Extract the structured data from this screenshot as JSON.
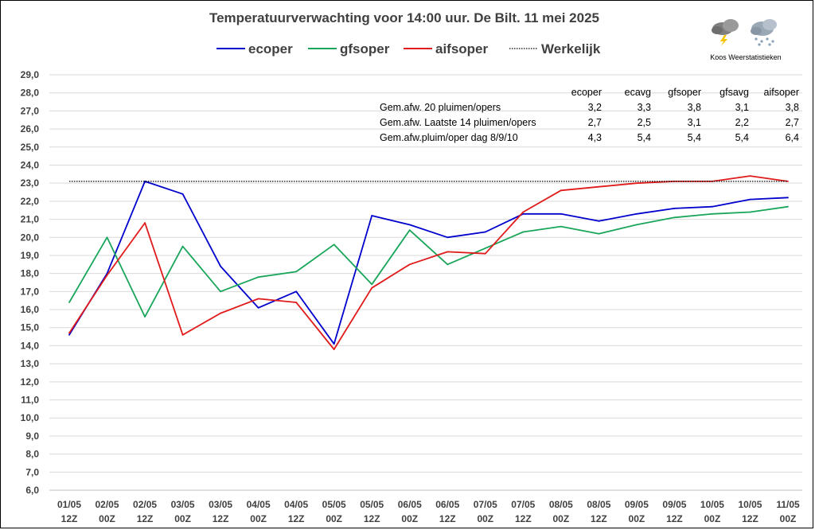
{
  "chart_data": {
    "type": "line",
    "title": "Temperatuurverwachting voor 14:00 uur. De Bilt. 11 mei 2025",
    "categories": [
      [
        "01/05",
        "12Z"
      ],
      [
        "02/05",
        "00Z"
      ],
      [
        "02/05",
        "12Z"
      ],
      [
        "03/05",
        "00Z"
      ],
      [
        "03/05",
        "12Z"
      ],
      [
        "04/05",
        "00Z"
      ],
      [
        "04/05",
        "12Z"
      ],
      [
        "05/05",
        "00Z"
      ],
      [
        "05/05",
        "12Z"
      ],
      [
        "06/05",
        "00Z"
      ],
      [
        "06/05",
        "12Z"
      ],
      [
        "07/05",
        "00Z"
      ],
      [
        "07/05",
        "12Z"
      ],
      [
        "08/05",
        "00Z"
      ],
      [
        "08/05",
        "12Z"
      ],
      [
        "09/05",
        "00Z"
      ],
      [
        "09/05",
        "12Z"
      ],
      [
        "10/05",
        "00Z"
      ],
      [
        "10/05",
        "12Z"
      ],
      [
        "11/05",
        "00Z"
      ]
    ],
    "ylim": [
      6.0,
      29.0
    ],
    "yticks": [
      "6,0",
      "7,0",
      "8,0",
      "9,0",
      "10,0",
      "11,0",
      "12,0",
      "13,0",
      "14,0",
      "15,0",
      "16,0",
      "17,0",
      "18,0",
      "19,0",
      "20,0",
      "21,0",
      "22,0",
      "23,0",
      "24,0",
      "25,0",
      "26,0",
      "27,0",
      "28,0",
      "29,0"
    ],
    "grid": true,
    "legend_position": "top",
    "series": [
      {
        "name": "ecoper",
        "color": "#0000cc",
        "style": "solid",
        "values": [
          14.6,
          18.0,
          23.1,
          22.4,
          18.4,
          16.1,
          17.0,
          14.1,
          21.2,
          20.7,
          20.0,
          20.3,
          21.3,
          21.3,
          20.9,
          21.3,
          21.6,
          21.7,
          22.1,
          22.2
        ]
      },
      {
        "name": "gfsoper",
        "color": "#1aa65a",
        "style": "solid",
        "values": [
          16.4,
          20.0,
          15.6,
          19.5,
          17.0,
          17.8,
          18.1,
          19.6,
          17.4,
          20.4,
          18.5,
          19.4,
          20.3,
          20.6,
          20.2,
          20.7,
          21.1,
          21.3,
          21.4,
          21.7
        ]
      },
      {
        "name": "aifsoper",
        "color": "#e01b1b",
        "style": "solid",
        "values": [
          14.7,
          17.9,
          20.8,
          14.6,
          15.8,
          16.6,
          16.4,
          13.8,
          17.2,
          18.5,
          19.2,
          19.1,
          21.4,
          22.6,
          22.8,
          23.0,
          23.1,
          23.1,
          23.4,
          23.1
        ]
      },
      {
        "name": "Werkelijk",
        "color": "#000000",
        "style": "dotted",
        "constant": 23.1
      }
    ]
  },
  "stats_table": {
    "headers": [
      "ecoper",
      "ecavg",
      "gfsoper",
      "gfsavg",
      "aifsoper"
    ],
    "rows": [
      {
        "label": "Gem.afw. 20 pluimen/opers",
        "values": [
          "3,2",
          "3,3",
          "3,8",
          "3,1",
          "3,8"
        ]
      },
      {
        "label": "Gem.afw. Laatste 14 pluimen/opers",
        "values": [
          "2,7",
          "2,5",
          "3,1",
          "2,2",
          "2,7"
        ]
      },
      {
        "label": "Gem.afw.pluim/oper dag 8/9/10",
        "values": [
          "4,3",
          "5,4",
          "5,4",
          "5,4",
          "6,4"
        ]
      }
    ]
  },
  "logo": {
    "text": "Koos Weerstatistieken",
    "icons": [
      "thunderstorm-cloud-icon",
      "snow-cloud-icon"
    ]
  }
}
